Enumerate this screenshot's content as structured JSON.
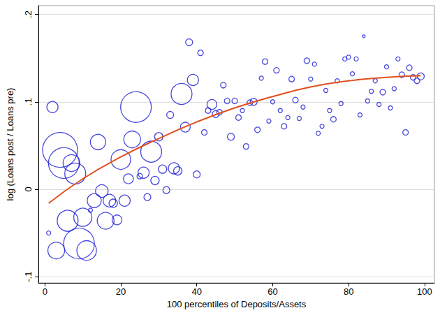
{
  "chart_data": {
    "type": "scatter",
    "x_label": "100 percentiles of Deposits/Assets",
    "y_label": "log (Loans post / Loans pre)",
    "xlim": [
      -1.7,
      102.6
    ],
    "xticks": [
      0,
      20,
      40,
      60,
      80,
      100
    ],
    "ylim": [
      -0.107,
      0.21
    ],
    "yticks": [
      {
        "value": -0.1,
        "label": "-.1"
      },
      0,
      {
        "value": 0.1,
        "label": ".1"
      },
      {
        "value": 0.2,
        "label": ".2"
      }
    ],
    "grid": true,
    "series": [
      {
        "type": "scatter",
        "marker": "circle",
        "color": "#1a1ad4",
        "x": [
          1,
          2,
          3,
          4,
          5,
          6,
          7,
          8,
          9,
          10,
          11,
          12,
          13,
          14,
          15,
          16,
          17,
          18,
          19,
          20,
          21,
          22,
          23,
          24,
          25,
          26,
          27,
          28,
          29,
          30,
          31,
          32,
          33,
          34,
          35,
          36,
          37,
          38,
          39,
          40,
          41,
          42,
          43,
          44,
          45,
          46,
          47,
          48,
          49,
          50,
          51,
          52,
          53,
          54,
          55,
          56,
          57,
          58,
          59,
          60,
          61,
          62,
          63,
          64,
          65,
          66,
          67,
          68,
          69,
          70,
          71,
          72,
          73,
          74,
          75,
          76,
          77,
          78,
          79,
          80,
          81,
          82,
          83,
          84,
          85,
          86,
          87,
          88,
          89,
          90,
          91,
          92,
          93,
          94,
          95,
          96,
          97,
          98,
          99
        ],
        "values": [
          -0.05,
          0.094,
          -0.07,
          0.045,
          0.03,
          -0.036,
          0.03,
          0.018,
          -0.062,
          -0.032,
          -0.07,
          -0.024,
          -0.013,
          0.054,
          -0.002,
          -0.036,
          -0.013,
          -0.016,
          -0.035,
          0.034,
          -0.013,
          0.012,
          0.057,
          0.094,
          0.015,
          0.019,
          -0.009,
          0.043,
          0.01,
          0.06,
          0.023,
          -0.001,
          0.085,
          0.024,
          0.021,
          0.109,
          0.071,
          0.168,
          0.125,
          0.017,
          0.156,
          0.065,
          0.09,
          0.097,
          0.086,
          0.088,
          0.119,
          0.101,
          0.06,
          0.101,
          0.082,
          0.09,
          0.049,
          0.099,
          0.1,
          0.068,
          0.127,
          0.146,
          0.078,
          0.1,
          0.136,
          0.09,
          0.072,
          0.082,
          0.126,
          0.102,
          0.081,
          0.094,
          0.147,
          0.126,
          0.143,
          0.064,
          0.072,
          0.113,
          0.09,
          0.08,
          0.124,
          0.098,
          0.149,
          0.151,
          0.132,
          0.149,
          0.085,
          0.175,
          0.101,
          0.112,
          0.124,
          0.097,
          0.111,
          0.14,
          0.093,
          0.115,
          0.149,
          0.131,
          0.065,
          0.139,
          0.128,
          0.124,
          0.129
        ],
        "sizes": [
          3,
          8,
          12,
          25,
          22,
          15,
          12,
          15,
          22,
          13,
          14,
          3,
          10,
          11,
          9,
          12,
          9,
          6,
          7,
          14,
          8,
          7,
          12,
          22,
          4,
          8,
          5,
          15,
          6,
          6,
          6,
          5,
          5,
          8,
          6,
          15,
          7,
          5,
          8,
          5,
          4,
          4,
          4,
          7,
          5,
          4,
          4,
          4,
          5,
          4,
          4,
          3,
          4,
          4,
          5,
          4,
          3,
          4,
          3,
          3,
          4,
          3,
          4,
          3,
          4,
          4,
          3,
          3,
          4,
          3,
          3,
          3,
          3,
          3,
          3,
          4,
          3,
          3,
          3,
          3,
          3,
          3,
          3,
          2,
          3,
          3,
          3,
          3,
          4,
          3,
          3,
          3,
          3,
          4,
          4,
          4,
          4,
          4,
          5
        ]
      },
      {
        "type": "line",
        "line_style": "solid",
        "color": "#e0501e",
        "x": [
          1,
          10,
          20,
          30,
          40,
          50,
          60,
          70,
          80,
          90,
          99
        ],
        "values": [
          -0.016,
          0.012,
          0.037,
          0.058,
          0.077,
          0.093,
          0.106,
          0.117,
          0.124,
          0.128,
          0.13
        ]
      }
    ]
  }
}
